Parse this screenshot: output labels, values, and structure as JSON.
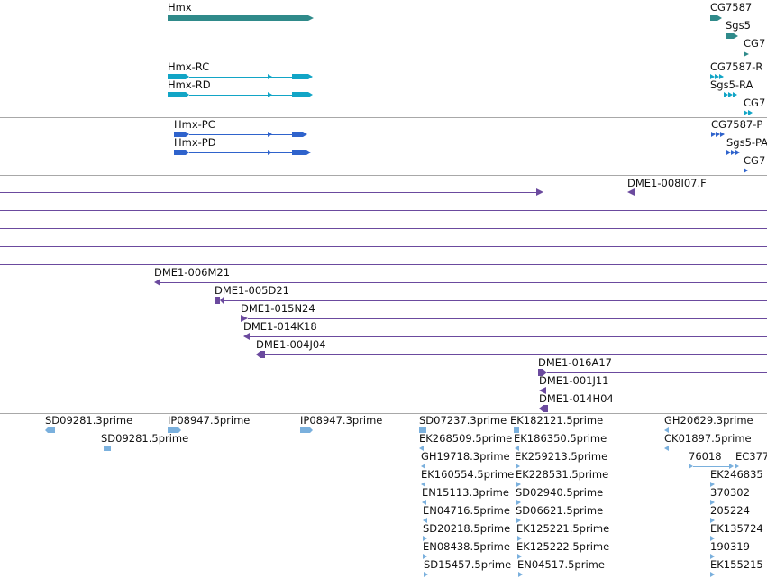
{
  "colors": {
    "gene": "#2f8a8a",
    "transcript": "#12a5c6",
    "protein": "#2f63cc",
    "bac": "#6b4a9e",
    "est": "#7ab0dd",
    "divider": "#a8a8a8"
  },
  "genes": {
    "hmx": "Hmx",
    "cg7587": "CG7587",
    "sgs5": "Sgs5",
    "cg7_cut": "CG7"
  },
  "transcripts": {
    "hmx_rc": "Hmx-RC",
    "hmx_rd": "Hmx-RD",
    "cg7587_r": "CG7587-R",
    "sgs5_ra": "Sgs5-RA",
    "cg7_cut": "CG7"
  },
  "proteins": {
    "hmx_pc": "Hmx-PC",
    "hmx_pd": "Hmx-PD",
    "cg7587_p": "CG7587-P",
    "sgs5_pa": "Sgs5-PA",
    "cg7_cut": "CG7"
  },
  "bacs": {
    "b_008I07": "DME1-008I07.F",
    "b_006M21": "DME1-006M21",
    "b_005D21": "DME1-005D21",
    "b_015N24": "DME1-015N24",
    "b_014K18": "DME1-014K18",
    "b_004J04": "DME1-004J04",
    "b_016A17": "DME1-016A17",
    "b_001J11": "DME1-001J11",
    "b_014H04": "DME1-014H04"
  },
  "ests": [
    "SD09281.3prime",
    "SD09281.5prime",
    "IP08947.5prime",
    "IP08947.3prime",
    "SD07237.3prime",
    "EK182121.5prime",
    "EK268509.5prime",
    "EK186350.5prime",
    "GH19718.3prime",
    "EK259213.5prime",
    "EK160554.5prime",
    "EK228531.5prime",
    "EN15113.3prime",
    "SD02940.5prime",
    "EN04716.5prime",
    "SD06621.5prime",
    "SD20218.5prime",
    "EK125221.5prime",
    "EN08438.5prime",
    "EK125222.5prime",
    "SD15457.5prime",
    "EN04517.5prime",
    "GH20629.3prime",
    "CK01897.5prime",
    "76018",
    "EC377",
    "EK246835",
    "370302",
    "205224",
    "EK135724",
    "190319",
    "EK155215"
  ]
}
